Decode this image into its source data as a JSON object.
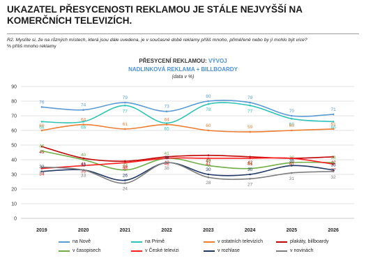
{
  "header": {
    "title": "UKAZATEL PŘESYCENOSTI REKLAMOU JE STÁLE NEJVYŠŠÍ NA KOMERČNÍCH TELEVIZÍCH.",
    "question": "R2. Myslíte si, že na různých místech, která jsou dále uvedena, je v současné době reklamy příliš mnoho, přiměřeně nebo by jí mohlo být více?",
    "measure": "% příliš mnoho reklamy"
  },
  "chart_header": {
    "line1_key": "PŘESYCENÍ REKLAMOU:",
    "line1_value": "VÝVOJ",
    "line2": "NADLINKOVÁ REKLAMA + BILLBOARDY",
    "line3": "(data v %)"
  },
  "chart_data": {
    "type": "line",
    "x": [
      "2019",
      "2020",
      "2021",
      "2022",
      "2023",
      "2024",
      "2025",
      "2026"
    ],
    "ylim": [
      0,
      90
    ],
    "yticks": [
      0,
      10,
      20,
      30,
      40,
      50,
      60,
      70,
      80,
      90
    ],
    "grid": true,
    "legend_position": "bottom",
    "series": [
      {
        "name": "na Nově",
        "color": "#5b9bd5",
        "values": [
          76,
          74,
          79,
          73,
          80,
          79,
          70,
          71
        ]
      },
      {
        "name": "na Primě",
        "color": "#2ec4b6",
        "values": [
          66,
          66,
          77,
          65,
          78,
          77,
          68,
          66
        ]
      },
      {
        "name": "v ostatních televizích",
        "color": "#ed7d31",
        "values": [
          60,
          64,
          61,
          64,
          60,
          59,
          60,
          61
        ]
      },
      {
        "name": "plakáty, billboardy",
        "color": "#c00000",
        "values": [
          49,
          41,
          39,
          42,
          43,
          42,
          41,
          42
        ]
      },
      {
        "name": "v časopisech",
        "color": "#70ad47",
        "values": [
          46,
          40,
          33,
          41,
          36,
          34,
          38,
          38
        ]
      },
      {
        "name": "v České televizi",
        "color": "#ff2020",
        "values": [
          34,
          36,
          38,
          41,
          41,
          41,
          41,
          37
        ]
      },
      {
        "name": "v rozhlase",
        "color": "#1f3864",
        "values": [
          32,
          33,
          26,
          38,
          30,
          30,
          36,
          33
        ]
      },
      {
        "name": "v novinách",
        "color": "#7f7f7f",
        "values": [
          35,
          33,
          24,
          38,
          28,
          27,
          31,
          32
        ]
      }
    ]
  }
}
